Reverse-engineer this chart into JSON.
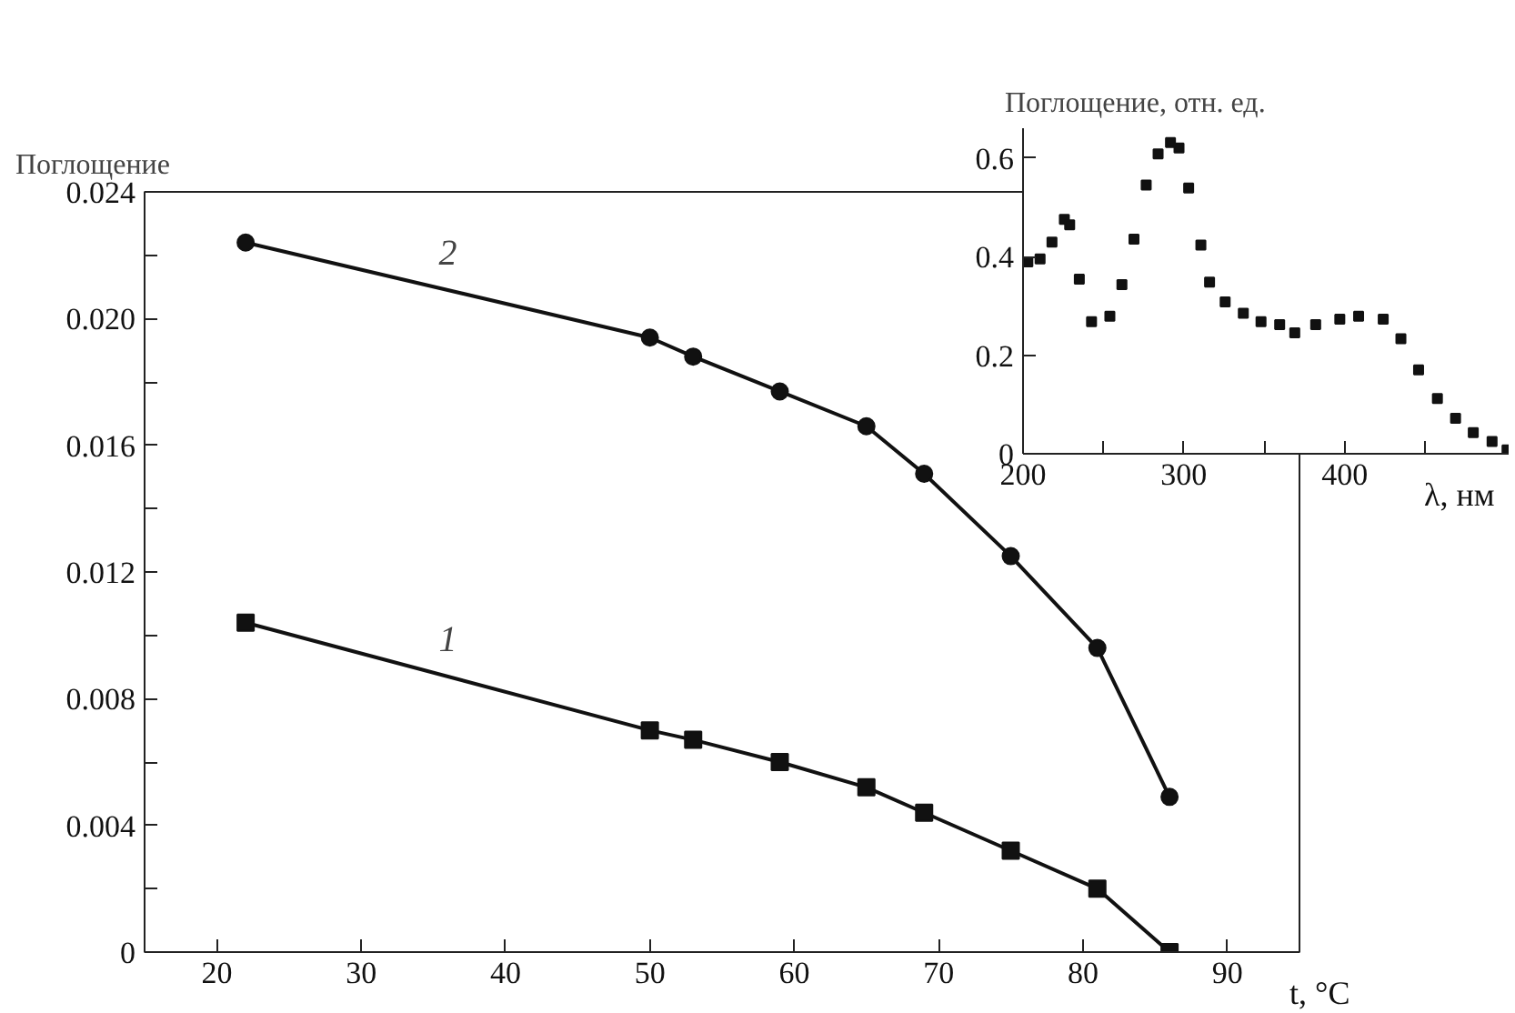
{
  "chart_data": [
    {
      "type": "line",
      "ylabel": "Поглощение",
      "xlabel": "t, °C",
      "marker": "circle",
      "line_style": "solid",
      "x": [
        22,
        50,
        53,
        59,
        65,
        69,
        75,
        81,
        86
      ],
      "series": [
        {
          "name": "1",
          "color": "#111111",
          "marker": "square",
          "values": [
            0.0104,
            0.007,
            0.0067,
            0.006,
            0.0052,
            0.0044,
            0.0032,
            0.002,
            0.0
          ]
        },
        {
          "name": "2",
          "color": "#111111",
          "marker": "circle",
          "values": [
            0.0224,
            0.0194,
            0.0188,
            0.0177,
            0.0166,
            0.0151,
            0.0125,
            0.0096,
            0.0049
          ]
        }
      ],
      "xlim": [
        15,
        95
      ],
      "xticks": [
        20,
        30,
        40,
        50,
        60,
        70,
        80,
        90
      ],
      "ylim": [
        0,
        0.024
      ],
      "yticks": [
        0,
        {
          "value": 0.002,
          "label": null
        },
        0.004,
        {
          "value": 0.006,
          "label": null
        },
        0.008,
        {
          "value": 0.01,
          "label": null
        },
        0.012,
        {
          "value": 0.014,
          "label": null
        },
        0.016,
        {
          "value": 0.018,
          "label": null
        },
        {
          "value": 0.02,
          "label": "0.020"
        },
        {
          "value": 0.022,
          "label": null
        },
        0.024
      ]
    },
    {
      "type": "scatter",
      "title": "Поглощение, отн. ед.",
      "xlabel": "λ, нм",
      "marker": "square",
      "x": [
        203,
        210.6,
        218,
        225.7,
        229,
        235,
        242.6,
        254,
        261.5,
        269,
        276.6,
        284,
        291.7,
        297,
        303,
        310.6,
        316,
        325.7,
        337,
        348,
        359.6,
        369,
        382,
        397,
        408.7,
        424,
        435,
        446,
        457.7,
        469,
        480,
        491.7,
        501
      ],
      "series": [
        {
          "color": "#111111",
          "values": [
            0.389,
            0.395,
            0.429,
            0.475,
            0.464,
            0.354,
            0.268,
            0.279,
            0.343,
            0.435,
            0.545,
            0.608,
            0.631,
            0.62,
            0.539,
            0.423,
            0.348,
            0.308,
            0.285,
            0.268,
            0.262,
            0.245,
            0.262,
            0.273,
            0.279,
            0.273,
            0.233,
            0.17,
            0.112,
            0.072,
            0.043,
            0.025,
            0.008
          ]
        }
      ],
      "xlim": [
        200,
        502
      ],
      "xticks": [
        200,
        {
          "value": 250,
          "label": null
        },
        300,
        {
          "value": 350,
          "label": null
        },
        400,
        {
          "value": 450,
          "label": null
        }
      ],
      "ylim": [
        0,
        0.66
      ],
      "yticks": [
        0,
        0.2,
        0.4,
        0.6
      ]
    }
  ]
}
